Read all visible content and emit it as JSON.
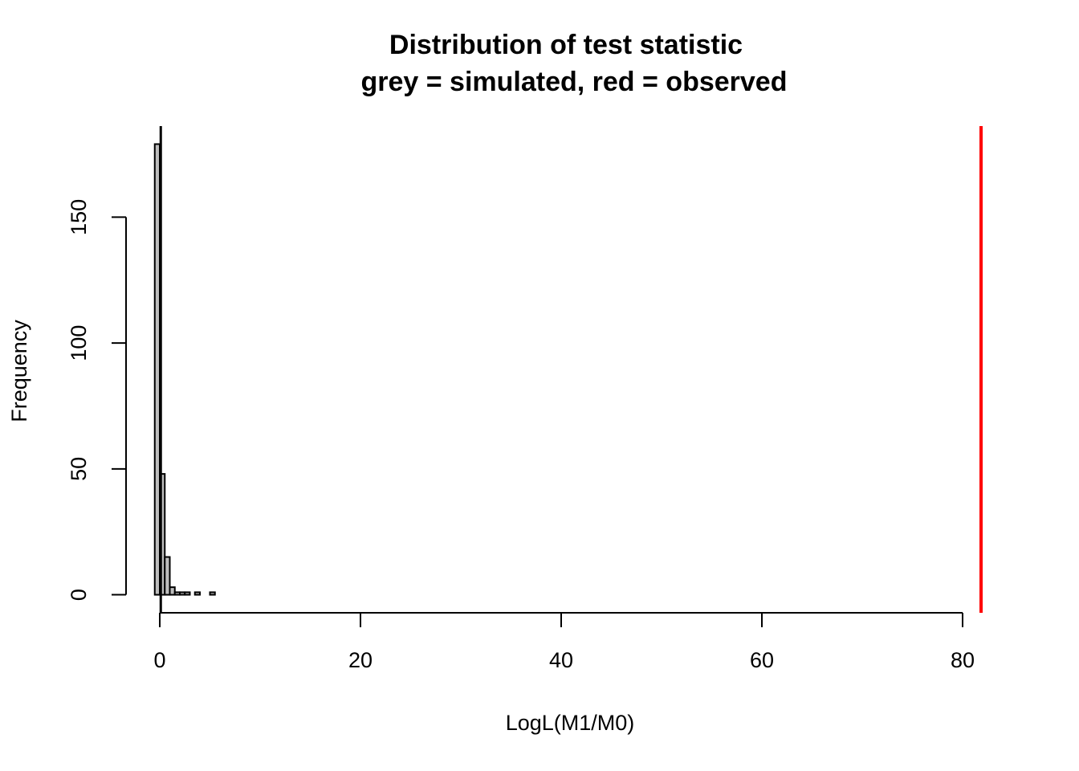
{
  "chart_data": {
    "type": "histogram",
    "title": "Distribution of test statistic",
    "subtitle": "grey = simulated, red = observed",
    "x_label": "LogL(M1/M0)",
    "y_label": "Frequency",
    "bins": [
      -0.5,
      0,
      0.5,
      1,
      1.5,
      2,
      2.5,
      3,
      3.5,
      4,
      4.5,
      5,
      5.5
    ],
    "counts": [
      179,
      48,
      15,
      3,
      1,
      1,
      1,
      0,
      1,
      0,
      0,
      1
    ],
    "color": "#bebebe",
    "reference_lines": [
      {
        "value": 0.1,
        "color": "#000000"
      },
      {
        "value": 81.84,
        "color": "#ff0000"
      }
    ],
    "xlim": [
      -3.36,
      85.2
    ],
    "ylim": [
      -7.16,
      186.16
    ],
    "xticks": [
      0,
      20,
      40,
      60,
      80
    ],
    "yticks": [
      0,
      50,
      100,
      150
    ]
  }
}
